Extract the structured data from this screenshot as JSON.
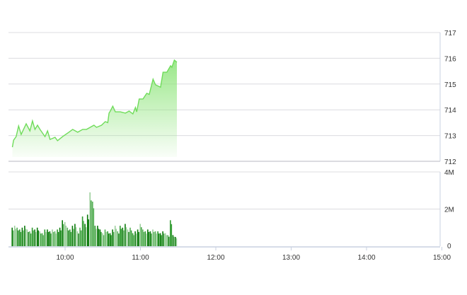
{
  "chart_data": [
    {
      "type": "area",
      "y_axis_side": "right",
      "ylim": [
        712,
        717
      ],
      "yticks": [
        "712",
        "713",
        "714",
        "715",
        "716",
        "717"
      ],
      "grid": true,
      "line_color": "#6fdc5a",
      "fill_color": "#a8ec98",
      "x": [
        "09:18",
        "09:19",
        "09:21",
        "09:23",
        "09:25",
        "09:29",
        "09:32",
        "09:34",
        "09:36",
        "09:38",
        "09:40",
        "09:44",
        "09:46",
        "09:48",
        "09:52",
        "09:54",
        "09:58",
        "10:03",
        "10:06",
        "10:10",
        "10:14",
        "10:17",
        "10:23",
        "10:25",
        "10:29",
        "10:32",
        "10:34",
        "10:35",
        "10:36",
        "10:38",
        "10:40",
        "10:44",
        "10:48",
        "10:51",
        "10:54",
        "10:56",
        "10:57",
        "10:59",
        "11:02",
        "11:05",
        "11:07",
        "11:10",
        "11:12",
        "11:16",
        "11:18",
        "11:21",
        "11:24",
        "11:25",
        "11:27",
        "11:29"
      ],
      "y": [
        712.55,
        712.82,
        712.96,
        713.37,
        713.04,
        713.46,
        713.18,
        713.57,
        713.24,
        713.4,
        713.24,
        712.96,
        713.18,
        712.85,
        712.93,
        712.8,
        712.96,
        713.13,
        713.24,
        713.13,
        713.24,
        713.24,
        713.4,
        713.32,
        713.4,
        713.54,
        713.5,
        713.87,
        713.95,
        714.14,
        713.92,
        713.92,
        713.87,
        713.95,
        713.84,
        714.09,
        713.92,
        714.42,
        714.42,
        714.64,
        714.6,
        715.19,
        714.97,
        714.88,
        715.46,
        715.46,
        715.71,
        715.65,
        715.93,
        715.85
      ]
    },
    {
      "type": "bar",
      "y_axis_side": "right",
      "ylim": [
        0,
        4
      ],
      "yticks": [
        "0",
        "2M",
        "4M"
      ],
      "grid": true,
      "bar_colors": [
        "#0b7a0b",
        "#2e9a2e",
        "#58b058",
        "#9ccf9c"
      ],
      "x_start": "09:18",
      "x_step_minutes": 2,
      "values_millions": [
        1.0,
        1.1,
        1.0,
        0.9,
        1.0,
        1.1,
        0.9,
        0.8,
        1.0,
        0.9,
        1.0,
        0.8,
        0.7,
        0.9,
        0.9,
        0.8,
        0.9,
        0.8,
        0.9,
        1.0,
        1.4,
        1.3,
        1.0,
        0.9,
        1.1,
        1.2,
        0.8,
        1.0,
        1.6,
        1.2,
        1.7,
        2.9,
        2.4,
        1.1,
        1.1,
        0.9,
        0.7,
        0.9,
        0.8,
        0.7,
        0.9,
        1.1,
        0.8,
        1.1,
        1.0,
        1.2,
        0.9,
        1.0,
        0.7,
        0.8,
        0.9,
        1.2,
        0.9,
        0.8,
        0.9,
        0.8,
        0.9,
        0.8,
        0.8,
        0.7,
        0.8,
        0.7,
        0.6,
        1.4,
        0.6,
        0.5
      ],
      "xticks": [
        "10:00",
        "11:00",
        "12:00",
        "13:00",
        "14:00",
        "15:00"
      ]
    }
  ]
}
